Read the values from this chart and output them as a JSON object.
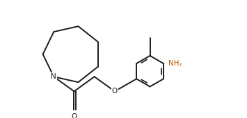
{
  "background_color": "#ffffff",
  "line_color": "#1a1a1a",
  "bond_lw": 1.4,
  "NH2_color": "#b86000",
  "figsize": [
    3.55,
    1.71
  ],
  "dpi": 100,
  "N_label": "N",
  "O_label": "O",
  "NH2_label": "NH₂",
  "xlim": [
    -0.05,
    3.6
  ],
  "ylim": [
    -0.05,
    1.75
  ]
}
